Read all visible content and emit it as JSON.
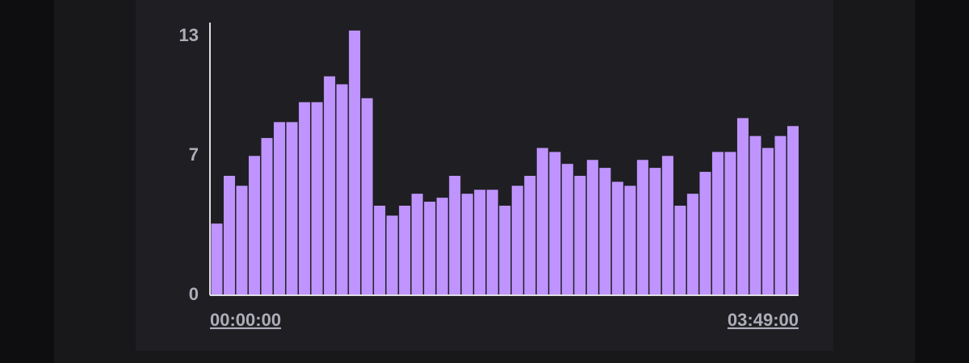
{
  "chart_data": {
    "type": "bar",
    "categories": [
      "00:00:00",
      null,
      null,
      null,
      null,
      null,
      null,
      null,
      null,
      null,
      null,
      null,
      null,
      null,
      null,
      null,
      null,
      null,
      null,
      null,
      null,
      null,
      null,
      null,
      null,
      null,
      null,
      null,
      null,
      null,
      null,
      null,
      null,
      null,
      null,
      null,
      null,
      null,
      null,
      null,
      null,
      null,
      null,
      null,
      null,
      null,
      "03:49:00"
    ],
    "values": [
      3.6,
      6,
      5.5,
      7,
      7.9,
      8.7,
      8.7,
      9.7,
      9.7,
      11,
      10.6,
      13.3,
      9.9,
      4.5,
      4,
      4.5,
      5.1,
      4.7,
      4.9,
      6,
      5.1,
      5.3,
      5.3,
      4.5,
      5.5,
      6,
      7.4,
      7.2,
      6.6,
      6,
      6.8,
      6.4,
      5.7,
      5.5,
      6.8,
      6.4,
      7,
      4.5,
      5.1,
      6.2,
      7.2,
      7.2,
      8.9,
      8,
      7.4,
      8,
      8.5
    ],
    "color": "#bf94ff",
    "ylim": [
      0,
      13.7
    ],
    "yticks": [
      0,
      7,
      13
    ]
  }
}
